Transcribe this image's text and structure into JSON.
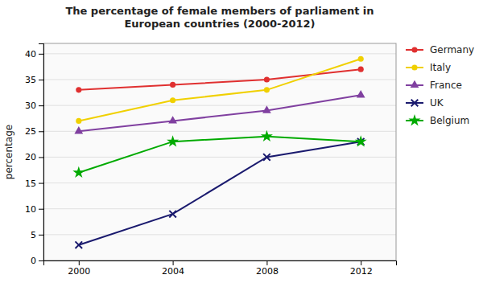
{
  "chart_data": {
    "type": "line",
    "title": "The percentage of female members of parliament in\nEuropean countries (2000-2012)",
    "ylabel": "percentage",
    "x": [
      2000,
      2004,
      2008,
      2012
    ],
    "series": [
      {
        "name": "Germany",
        "color": "#e03030",
        "marker": "circle",
        "values": [
          33,
          34,
          35,
          37
        ]
      },
      {
        "name": "Italy",
        "color": "#f0d000",
        "marker": "circle",
        "values": [
          27,
          31,
          33,
          39
        ]
      },
      {
        "name": "France",
        "color": "#8040a0",
        "marker": "triangle",
        "values": [
          25,
          27,
          29,
          32
        ]
      },
      {
        "name": "UK",
        "color": "#1a1a6e",
        "marker": "x",
        "values": [
          3,
          9,
          20,
          23
        ]
      },
      {
        "name": "Belgium",
        "color": "#00aa00",
        "marker": "star",
        "values": [
          17,
          23,
          24,
          23
        ]
      }
    ],
    "xlim": [
      1998.5,
      2013.5
    ],
    "xticks": [
      2000,
      2004,
      2008,
      2012
    ],
    "ylim": [
      0,
      42
    ],
    "yticks": [
      0,
      5,
      10,
      15,
      20,
      25,
      30,
      35,
      40
    ],
    "grid": true,
    "legend": "right"
  }
}
